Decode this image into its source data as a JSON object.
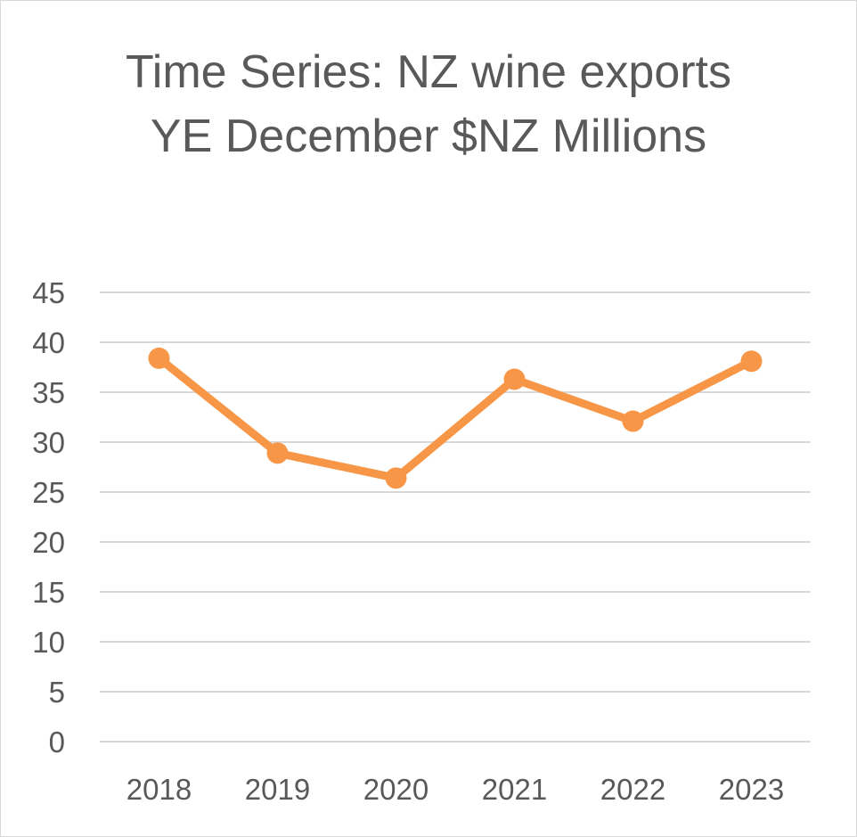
{
  "chart_data": {
    "type": "line",
    "title": "Time Series: NZ wine exports YE December $NZ Millions",
    "categories": [
      "2018",
      "2019",
      "2020",
      "2021",
      "2022",
      "2023"
    ],
    "series": [
      {
        "values": [
          38.4,
          28.9,
          26.4,
          36.3,
          32.1,
          38.1
        ]
      }
    ],
    "yticks": [
      "0",
      "5",
      "10",
      "15",
      "20",
      "25",
      "30",
      "35",
      "40",
      "45"
    ],
    "ylim": [
      0,
      45
    ],
    "grid": true,
    "legend": "none",
    "colors": {
      "line": "#F79646",
      "grid": "#d9d9d9",
      "text": "#595959"
    }
  }
}
